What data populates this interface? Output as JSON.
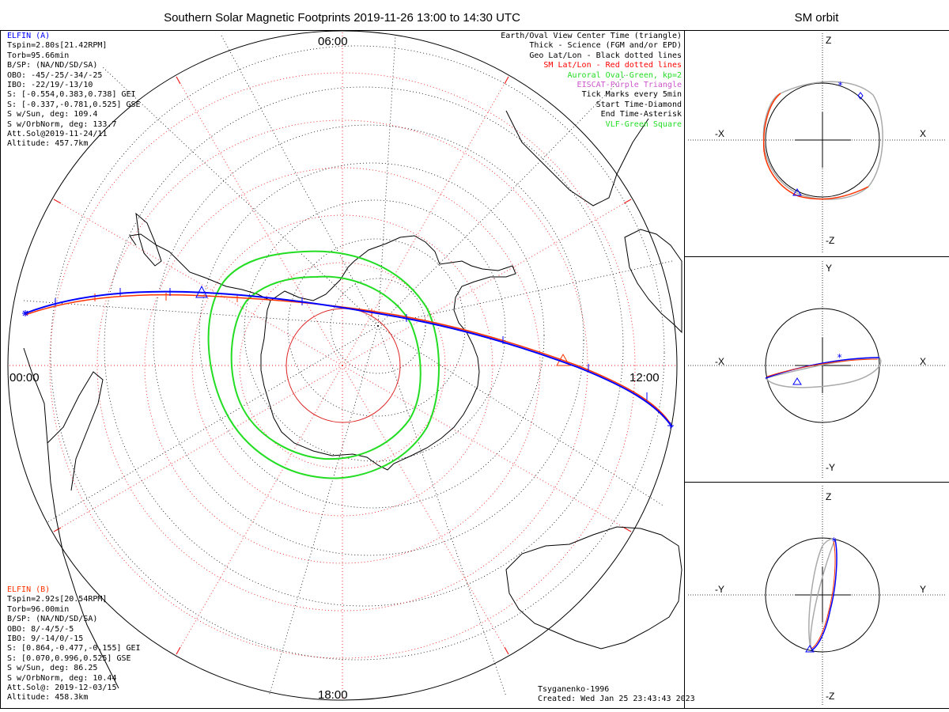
{
  "title": "Southern Solar Magnetic Footprints 2019-11-26 13:00 to 14:30 UTC",
  "sm_title": "SM orbit",
  "colors": {
    "elfin_a": "#0000ff",
    "elfin_b": "#ff3300",
    "oval": "#22dd22",
    "sm_grid": "#ee2222",
    "eiscat": "#cc55cc",
    "coast": "#000000",
    "orbit_gray": "#aaaaaa"
  },
  "clock_labels": {
    "top": "06:00",
    "left": "00:00",
    "right": "12:00",
    "bottom": "18:00"
  },
  "elfin_a": {
    "name": "ELFIN (A)",
    "lines": [
      "Tspin=2.80s[21.42RPM]",
      "Torb=95.66min",
      "B/SP: (NA/ND/SD/SA)",
      "OBO: -45/-25/-34/-25",
      "IBO: -22/19/-13/10",
      "S: [-0.554,0.383,0.738] GEI",
      "S: [-0.337,-0.781,0.525] GSE",
      "S w/Sun, deg: 109.4",
      "S w/OrbNorm, deg: 133.7",
      "Att.Sol@2019-11-24/11",
      "Altitude: 457.7km"
    ]
  },
  "elfin_b": {
    "name": "ELFIN (B)",
    "lines": [
      "Tspin=2.92s[20.54RPM]",
      "Torb=96.00min",
      "B/SP: (NA/ND/SD/SA)",
      "OBO: 8/-4/5/-5",
      "IBO: 9/-14/0/-15",
      "S: [0.864,-0.477,-0.155] GEI",
      "S: [0.070,0.996,0.525] GSE",
      "S w/Sun, deg: 86.25",
      "S w/OrbNorm, deg: 10.44",
      "Att.Sol@: 2019-12-03/15",
      "Altitude: 458.3km"
    ]
  },
  "legend": [
    {
      "text": "Earth/Oval View Center Time (triangle)",
      "color": "#000000"
    },
    {
      "text": "Thick - Science (FGM and/or EPD)",
      "color": "#000000"
    },
    {
      "text": "Geo Lat/Lon - Black dotted lines",
      "color": "#000000"
    },
    {
      "text": "SM Lat/Lon - Red dotted lines",
      "color": "#ff0000"
    },
    {
      "text": "Auroral Oval-Green, kp=2",
      "color": "#22dd22"
    },
    {
      "text": "EISCAT-Purple Triangle",
      "color": "#cc55cc"
    },
    {
      "text": "Tick Marks every 5min",
      "color": "#000000"
    },
    {
      "text": "Start Time-Diamond",
      "color": "#000000"
    },
    {
      "text": "End Time-Asterisk",
      "color": "#000000"
    },
    {
      "text": "VLF-Green Square",
      "color": "#22dd22"
    }
  ],
  "footer": {
    "model": "Tsyganenko-1996",
    "created": "Created: Wed Jan 25 23:43:43 2023"
  },
  "sm_panels": [
    {
      "top": "Z",
      "bottom": "-Z",
      "left": "-X",
      "right": "X"
    },
    {
      "top": "Y",
      "bottom": "-Y",
      "left": "-X",
      "right": "X"
    },
    {
      "top": "Z",
      "bottom": "-Z",
      "left": "-Y",
      "right": "Y"
    }
  ]
}
